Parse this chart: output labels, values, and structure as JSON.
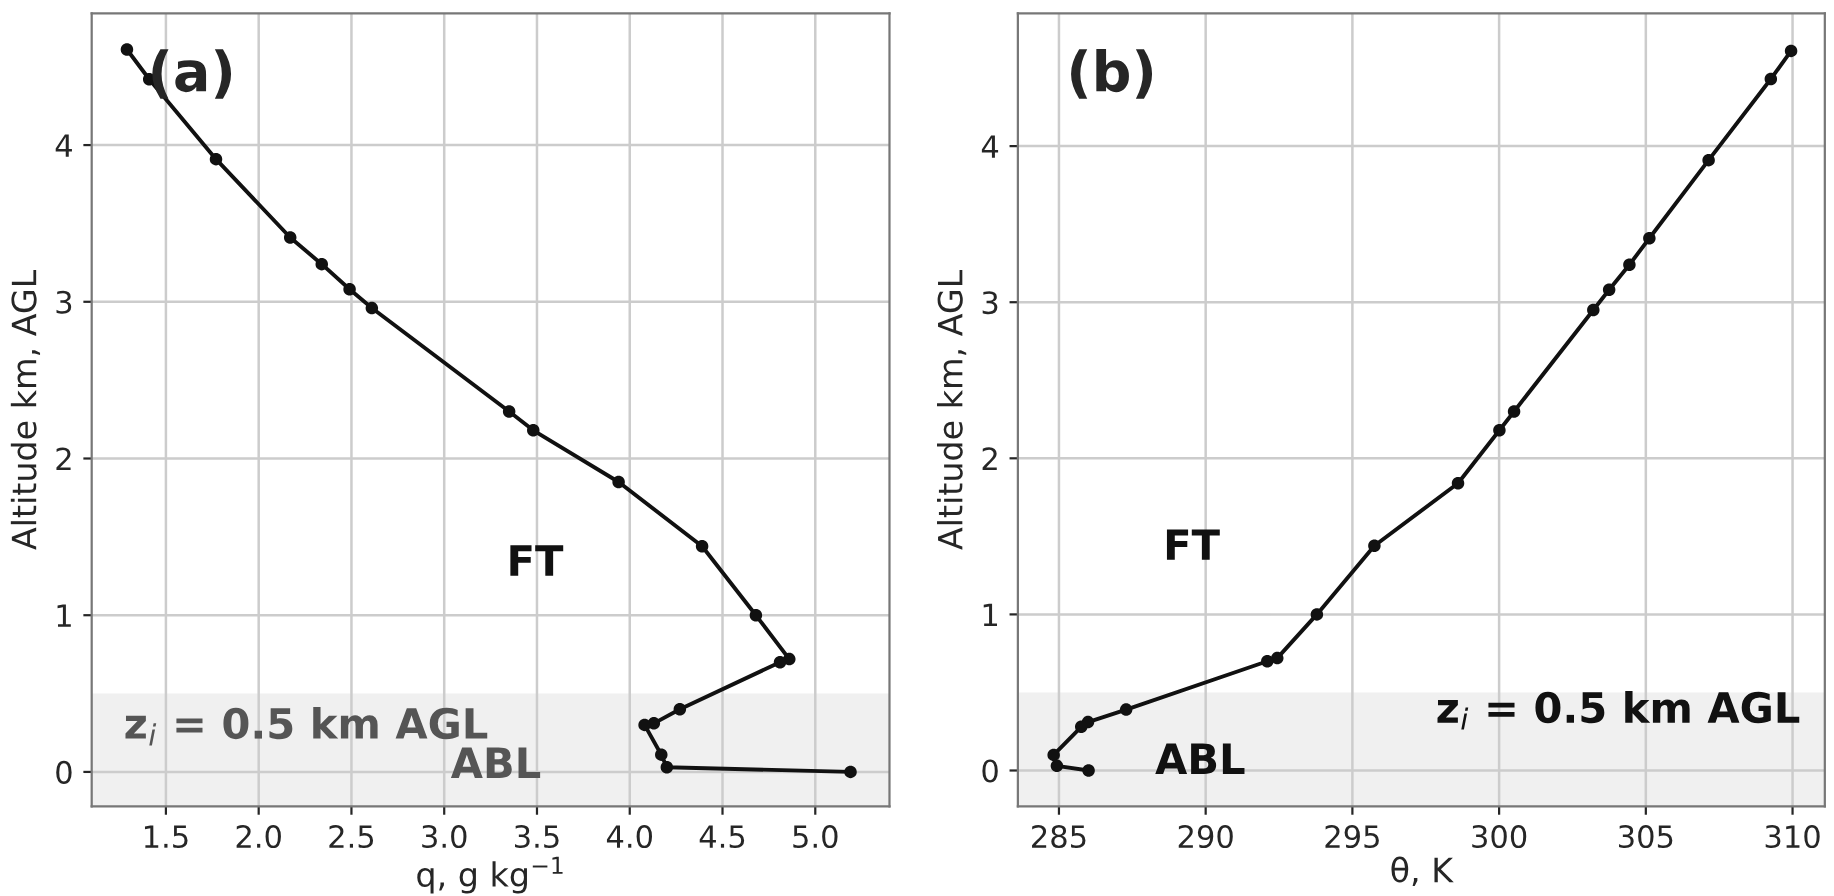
{
  "chart_data": [
    {
      "type": "line",
      "title": "(a)",
      "xlabel": "q, g kg$^{−1}$",
      "ylabel": "Altitude km, AGL",
      "xlim": [
        1.1,
        5.4
      ],
      "xticks": [
        {
          "value": 1.5,
          "label": "1.5"
        },
        {
          "value": 2.0,
          "label": "2.0"
        },
        {
          "value": 2.5,
          "label": "2.5"
        },
        {
          "value": 3.0,
          "label": "3.0"
        },
        {
          "value": 3.5,
          "label": "3.5"
        },
        {
          "value": 4.0,
          "label": "4.0"
        },
        {
          "value": 4.5,
          "label": "4.5"
        },
        {
          "value": 5.0,
          "label": "5.0"
        }
      ],
      "ylim": [
        -0.22,
        4.84
      ],
      "yticks": [
        0,
        1,
        2,
        3,
        4
      ],
      "grid": true,
      "marker": "circle",
      "line_style": "solid",
      "series": [
        {
          "color": "#111111",
          "x": [
            1.29,
            1.41,
            1.77,
            2.17,
            2.34,
            2.49,
            2.61,
            3.35,
            3.48,
            3.94,
            4.39,
            4.68,
            4.86,
            4.81,
            4.27,
            4.13,
            4.08,
            4.17,
            4.2,
            5.19
          ],
          "values": [
            4.61,
            4.42,
            3.91,
            3.41,
            3.24,
            3.08,
            2.96,
            2.3,
            2.18,
            1.85,
            1.44,
            1.0,
            0.72,
            0.7,
            0.4,
            0.31,
            0.3,
            0.11,
            0.03,
            0.0
          ]
        }
      ],
      "bands": [
        {
          "axis": "y",
          "from": -0.22,
          "to": 0.5,
          "label": "z$_{i}$ = 0.5 km AGL",
          "color": "#f0f0f0"
        }
      ],
      "annotations": [
        "FT",
        "ABL"
      ]
    },
    {
      "type": "line",
      "title": "(b)",
      "xlabel": "θ, K",
      "ylabel": "Altitude km, AGL",
      "xlim": [
        283.6,
        311.1
      ],
      "xticks": [
        285,
        290,
        295,
        300,
        305,
        310
      ],
      "ylim": [
        -0.23,
        4.85
      ],
      "yticks": [
        0,
        1,
        2,
        3,
        4
      ],
      "grid": true,
      "marker": "circle",
      "line_style": "solid",
      "series": [
        {
          "color": "#111111",
          "x": [
            309.95,
            309.26,
            307.14,
            305.12,
            304.44,
            303.75,
            303.21,
            300.51,
            300.01,
            298.6,
            295.75,
            293.79,
            292.44,
            292.1,
            287.29,
            285.99,
            285.76,
            284.82,
            284.93,
            286.01
          ],
          "values": [
            4.61,
            4.43,
            3.91,
            3.41,
            3.24,
            3.08,
            2.95,
            2.3,
            2.18,
            1.84,
            1.44,
            1.0,
            0.72,
            0.7,
            0.39,
            0.31,
            0.28,
            0.1,
            0.03,
            0.0
          ]
        }
      ],
      "bands": [
        {
          "axis": "y",
          "from": -0.23,
          "to": 0.5,
          "label": "z$_{i}$ = 0.5 km AGL",
          "color": "#f0f0f0"
        }
      ],
      "annotations": [
        "FT",
        "ABL"
      ]
    }
  ]
}
